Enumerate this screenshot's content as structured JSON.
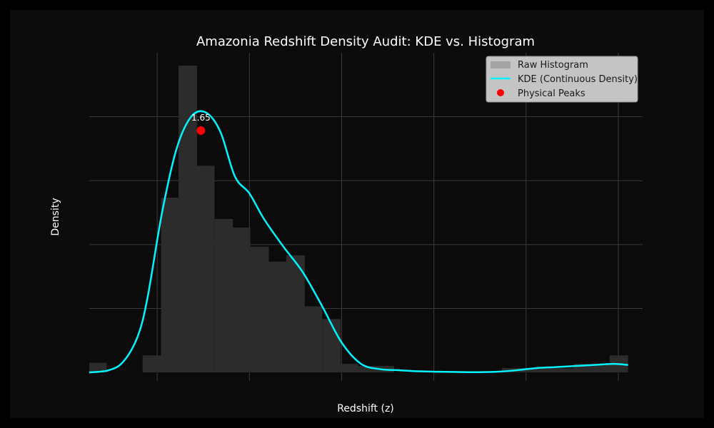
{
  "chart_data": {
    "type": "histogram+kde",
    "title": "Amazonia Redshift Density Audit: KDE vs. Histogram",
    "xlabel": "Redshift (z)",
    "ylabel": "Density",
    "xlim": [
      0.0,
      5.7
    ],
    "ylim": [
      -0.04,
      1.5
    ],
    "grid": true,
    "legend_position": "top-right",
    "colors": {
      "background": "#0b0b0b",
      "histogram": "#2c2c2c",
      "kde": "#00f5ff",
      "peak": "#ff0000",
      "grid": "#3a3a3a"
    },
    "histogram": {
      "name": "Raw Histogram",
      "bin_edges": [
        0.0,
        0.18,
        0.37,
        0.55,
        0.74,
        0.92,
        1.11,
        1.29,
        1.48,
        1.66,
        1.85,
        2.03,
        2.22,
        2.4,
        2.59,
        2.77,
        2.96,
        3.14,
        3.33,
        3.51,
        3.7,
        3.88,
        4.07,
        4.25,
        4.44,
        4.62,
        4.81,
        4.99,
        5.18,
        5.36,
        5.55
      ],
      "values": [
        0.045,
        0.0,
        0.0,
        0.08,
        0.82,
        1.44,
        0.97,
        0.72,
        0.68,
        0.59,
        0.52,
        0.55,
        0.31,
        0.25,
        0.04,
        0.03,
        0.03,
        0.0,
        0.0,
        0.0,
        0.0,
        0.0,
        0.0,
        0.02,
        0.02,
        0.02,
        0.02,
        0.04,
        0.04,
        0.08
      ]
    },
    "kde": {
      "name": "KDE (Continuous Density)",
      "x": [
        0.0,
        0.2,
        0.35,
        0.5,
        0.6,
        0.75,
        0.9,
        1.05,
        1.2,
        1.35,
        1.5,
        1.65,
        1.8,
        2.0,
        2.2,
        2.4,
        2.6,
        2.8,
        3.0,
        3.2,
        3.4,
        3.6,
        3.8,
        4.0,
        4.2,
        4.4,
        4.6,
        4.8,
        5.0,
        5.2,
        5.4,
        5.55
      ],
      "y": [
        0.0,
        0.01,
        0.05,
        0.17,
        0.35,
        0.75,
        1.05,
        1.2,
        1.22,
        1.13,
        0.92,
        0.84,
        0.72,
        0.59,
        0.47,
        0.31,
        0.14,
        0.04,
        0.015,
        0.01,
        0.005,
        0.003,
        0.002,
        0.001,
        0.003,
        0.01,
        0.02,
        0.025,
        0.03,
        0.035,
        0.04,
        0.035
      ]
    },
    "peaks": {
      "name": "Physical Peaks",
      "points": [
        {
          "x": 1.15,
          "y": 1.135,
          "label": "1.65"
        }
      ]
    }
  }
}
